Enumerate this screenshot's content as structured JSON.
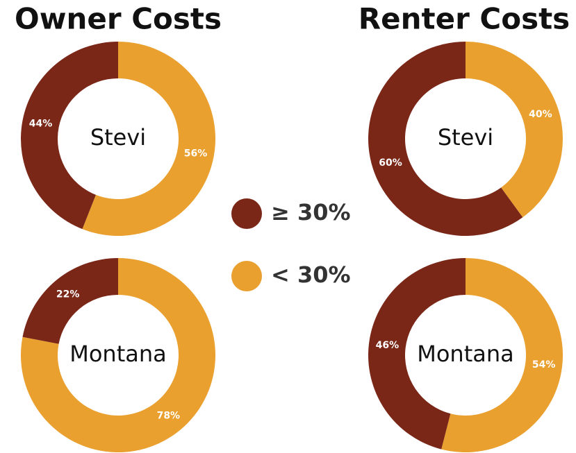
{
  "headers": [
    "Owner Costs",
    "Renter Costs"
  ],
  "legend": [
    {
      "label": "≥ 30%",
      "color": "#7a2718"
    },
    {
      "label": "< 30%",
      "color": "#e9a02e"
    }
  ],
  "chart_data": [
    {
      "type": "pie",
      "donut": true,
      "center_label": "Stevi",
      "values": [
        44,
        56
      ],
      "value_labels": [
        "44%",
        "56%"
      ]
    },
    {
      "type": "pie",
      "donut": true,
      "center_label": "Stevi",
      "values": [
        60,
        40
      ],
      "value_labels": [
        "60%",
        "40%"
      ]
    },
    {
      "type": "pie",
      "donut": true,
      "center_label": "Montana",
      "values": [
        22,
        78
      ],
      "value_labels": [
        "22%",
        "78%"
      ]
    },
    {
      "type": "pie",
      "donut": true,
      "center_label": "Montana",
      "values": [
        46,
        54
      ],
      "value_labels": [
        "46%",
        "54%"
      ]
    }
  ]
}
